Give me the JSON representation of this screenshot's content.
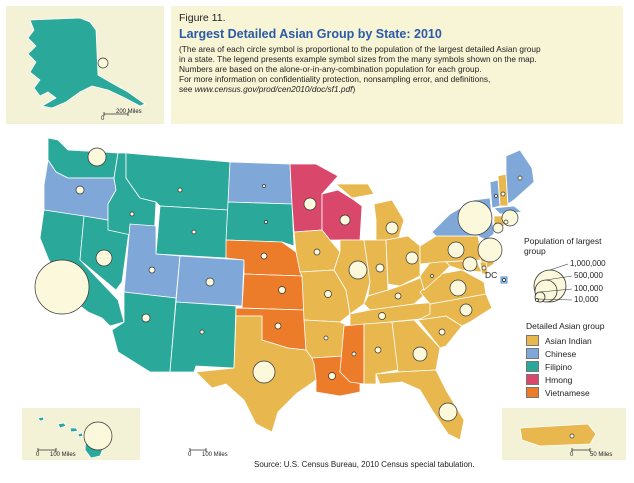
{
  "figure": {
    "label": "Figure 11.",
    "title": "Largest Detailed Asian Group by State: 2010",
    "note_lines": [
      "(The area of each circle symbol is proportional to the population of the largest detailed Asian group",
      "in a state. The legend presents example symbol sizes from the many symbols shown on the map.",
      "Numbers are based on the alone-or-in-any-combination population for each group.",
      "For more information on confidentiality protection, nonsampling error, and definitions,"
    ],
    "note_prefix": "see ",
    "note_link": "www.census.gov/prod/cen2010/doc/sf1.pdf",
    "note_suffix": ")"
  },
  "legend_size": {
    "title": "Population of largest group",
    "entries": [
      {
        "label": "1,000,000",
        "value": 1000000
      },
      {
        "label": "500,000",
        "value": 500000
      },
      {
        "label": "100,000",
        "value": 100000
      },
      {
        "label": "10,000",
        "value": 10000
      }
    ]
  },
  "legend_color": {
    "title": "Detailed Asian group",
    "entries": [
      {
        "label": "Asian Indian",
        "color": "#e8b84e"
      },
      {
        "label": "Chinese",
        "color": "#7fa8d8"
      },
      {
        "label": "Filipino",
        "color": "#2aa89a"
      },
      {
        "label": "Hmong",
        "color": "#d9476a"
      },
      {
        "label": "Vietnamese",
        "color": "#ec7b2a"
      }
    ]
  },
  "scales": {
    "alaska": "200 Miles",
    "hawaii": "100 Miles",
    "conus": "100 Miles",
    "pr": "50 Miles"
  },
  "dc_label": "DC",
  "source": "Source: U.S. Census Bureau, 2010 Census special tabulation.",
  "colors": {
    "asian_indian": "#e8b84e",
    "chinese": "#7fa8d8",
    "filipino": "#2aa89a",
    "hmong": "#d9476a",
    "vietnamese": "#ec7b2a",
    "symbol_fill": "#fcf8dc",
    "inset_bg": "#f3f1d6"
  }
}
